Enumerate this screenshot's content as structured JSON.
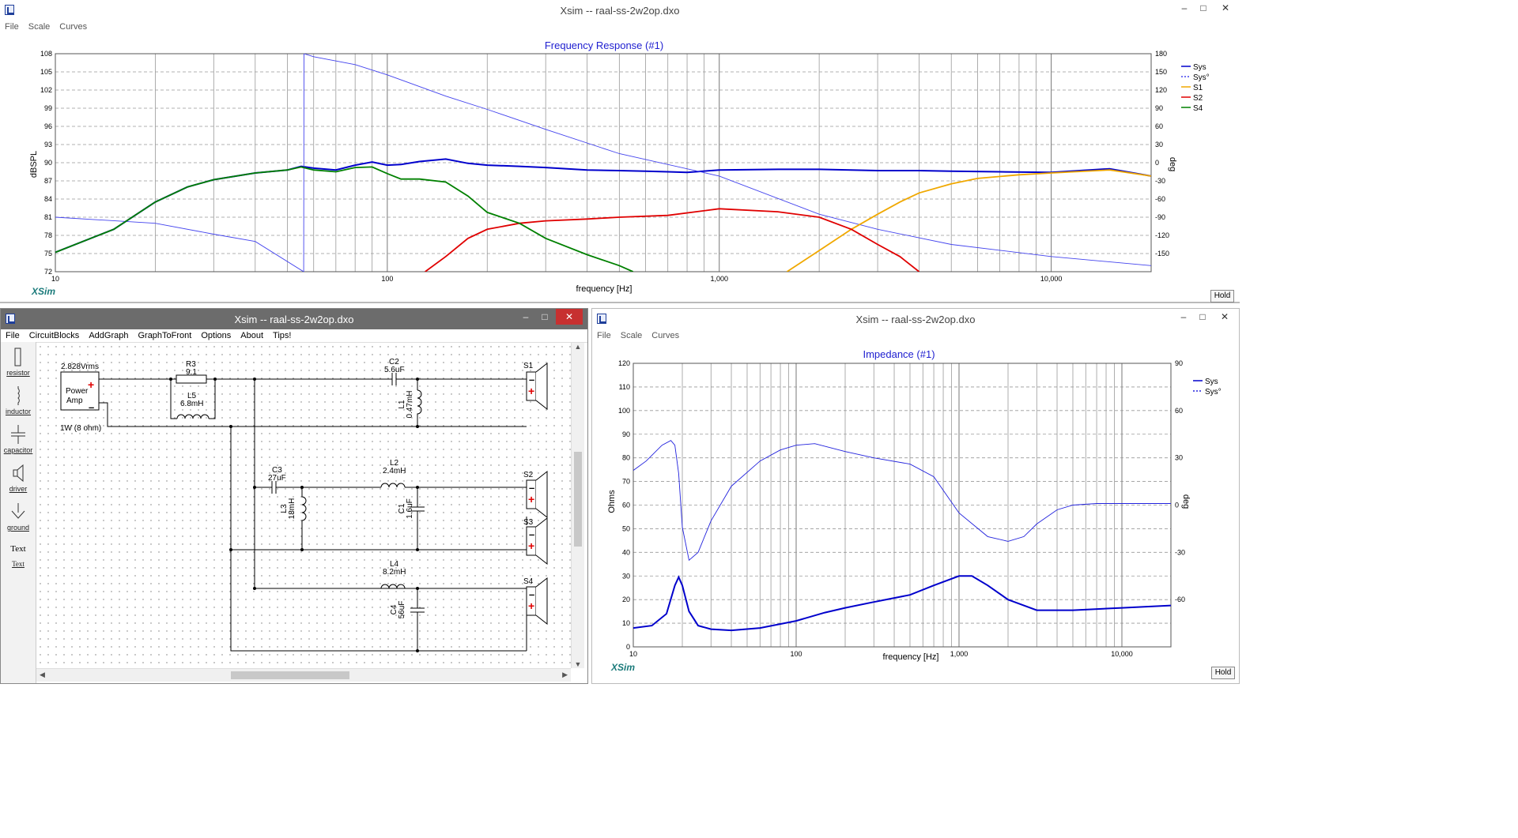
{
  "freq_window": {
    "title": "Xsim -- raal-ss-2w2op.dxo",
    "menu": [
      "File",
      "Scale",
      "Curves"
    ],
    "hold_label": "Hold",
    "logo": "XSim",
    "chart_data": {
      "type": "line",
      "title": "Frequency Response (#1)",
      "xlabel": "frequency [Hz]",
      "ylabel": "dBSPL",
      "y2label": "deg",
      "x_scale": "log",
      "xlim": [
        10,
        20000
      ],
      "ylim": [
        72,
        108
      ],
      "y2lim": [
        -180,
        180
      ],
      "x_ticks": [
        "10",
        "100",
        "1,000",
        "10,000"
      ],
      "y_ticks": [
        "72",
        "75",
        "78",
        "81",
        "84",
        "87",
        "90",
        "93",
        "96",
        "99",
        "102",
        "105",
        "108"
      ],
      "y2_ticks": [
        "-150",
        "-120",
        "-90",
        "-60",
        "-30",
        "0",
        "30",
        "60",
        "90",
        "120",
        "150",
        "180"
      ],
      "grid": true,
      "legend_position": "top-right",
      "series": [
        {
          "name": "Sys",
          "color": "#0000cc",
          "style": "solid",
          "axis": "left",
          "x": [
            10,
            15,
            20,
            25,
            30,
            40,
            50,
            55,
            60,
            70,
            80,
            90,
            100,
            110,
            125,
            150,
            175,
            200,
            250,
            300,
            400,
            500,
            600,
            700,
            800,
            1000,
            1500,
            2000,
            3000,
            4000,
            5000,
            7000,
            10000,
            15000,
            20000
          ],
          "y": [
            75.2,
            79,
            83.5,
            86,
            87.2,
            88.3,
            88.8,
            89.4,
            89.1,
            88.8,
            89.6,
            90.1,
            89.6,
            89.7,
            90.2,
            90.6,
            89.9,
            89.6,
            89.4,
            89.2,
            88.8,
            88.7,
            88.6,
            88.5,
            88.4,
            88.8,
            88.9,
            88.9,
            88.7,
            88.7,
            88.6,
            88.5,
            88.4,
            89.0,
            87.8
          ]
        },
        {
          "name": "Sys°",
          "color": "#4444ee",
          "style": "dashed",
          "axis": "right",
          "x": [
            10,
            20,
            30,
            40,
            56,
            56.1,
            60,
            80,
            100,
            150,
            200,
            300,
            500,
            1000,
            2000,
            3000,
            5000,
            10000,
            20000
          ],
          "y": [
            -90,
            -100,
            -118,
            -130,
            -180,
            180,
            175,
            162,
            145,
            110,
            88,
            55,
            15,
            -22,
            -85,
            -110,
            -135,
            -155,
            -170
          ]
        },
        {
          "name": "S1",
          "color": "#f0a800",
          "style": "solid",
          "axis": "left",
          "x": [
            1600,
            2000,
            2500,
            3000,
            3500,
            4000,
            5000,
            6000,
            8000,
            10000,
            15000,
            20000
          ],
          "y": [
            72,
            75.5,
            79,
            81.5,
            83.5,
            85,
            86.5,
            87.4,
            88,
            88.3,
            88.8,
            87.8
          ]
        },
        {
          "name": "S2",
          "color": "#e00000",
          "style": "solid",
          "axis": "left",
          "x": [
            130,
            150,
            175,
            200,
            250,
            300,
            400,
            500,
            700,
            1000,
            1500,
            2000,
            2500,
            3000,
            3500,
            4000
          ],
          "y": [
            72,
            74.5,
            77.5,
            79,
            80,
            80.4,
            80.7,
            81,
            81.3,
            82.4,
            81.9,
            81,
            79,
            76.5,
            74.5,
            72
          ]
        },
        {
          "name": "S4",
          "color": "#008000",
          "style": "solid",
          "axis": "left",
          "x": [
            10,
            15,
            20,
            25,
            30,
            40,
            50,
            55,
            60,
            70,
            80,
            90,
            100,
            110,
            125,
            150,
            175,
            200,
            250,
            300,
            400,
            500,
            550
          ],
          "y": [
            75.2,
            79,
            83.5,
            86,
            87.2,
            88.3,
            88.8,
            89.3,
            88.8,
            88.5,
            89.2,
            89.3,
            88.2,
            87.3,
            87.3,
            86.8,
            84.5,
            81.8,
            80,
            77.5,
            74.8,
            73,
            72
          ]
        }
      ]
    }
  },
  "imp_window": {
    "title": "Xsim -- raal-ss-2w2op.dxo",
    "menu": [
      "File",
      "Scale",
      "Curves"
    ],
    "hold_label": "Hold",
    "logo": "XSim",
    "chart_data": {
      "type": "line",
      "title": "Impedance (#1)",
      "xlabel": "frequency [Hz]",
      "ylabel": "Ohms",
      "y2label": "deg",
      "x_scale": "log",
      "xlim": [
        10,
        20000
      ],
      "ylim": [
        0,
        120
      ],
      "y2lim": [
        -90,
        90
      ],
      "x_ticks": [
        "10",
        "100",
        "1,000",
        "10,000"
      ],
      "y_ticks": [
        "0",
        "10",
        "20",
        "30",
        "40",
        "50",
        "60",
        "70",
        "80",
        "90",
        "100",
        "110",
        "120"
      ],
      "y2_ticks": [
        "-60",
        "-30",
        "0",
        "30",
        "60",
        "90"
      ],
      "grid": true,
      "legend_position": "top-right",
      "series": [
        {
          "name": "Sys",
          "color": "#0000cc",
          "style": "solid",
          "axis": "left",
          "x": [
            10,
            13,
            16,
            18,
            19,
            20,
            22,
            25,
            30,
            40,
            60,
            100,
            150,
            200,
            300,
            500,
            700,
            1000,
            1200,
            1500,
            2000,
            3000,
            5000,
            10000,
            20000
          ],
          "y": [
            8,
            9,
            14,
            26,
            29.5,
            26,
            15,
            9,
            7.5,
            7,
            8,
            11,
            14.5,
            16.5,
            19,
            22,
            26,
            30,
            30,
            26,
            20,
            15.5,
            15.5,
            16.5,
            17.5
          ]
        },
        {
          "name": "Sys°",
          "color": "#2222dd",
          "style": "dashed",
          "axis": "right",
          "x": [
            10,
            12,
            15,
            17,
            18,
            19,
            20,
            22,
            25,
            30,
            40,
            60,
            80,
            100,
            130,
            200,
            300,
            500,
            700,
            1000,
            1500,
            2000,
            2500,
            3000,
            4000,
            5000,
            7000,
            10000,
            20000
          ],
          "y": [
            22,
            28,
            38,
            41,
            38,
            20,
            -14,
            -35,
            -30,
            -10,
            12,
            28,
            35,
            38,
            39,
            34,
            30,
            26,
            18,
            -5,
            -20,
            -23,
            -20,
            -12,
            -3,
            0,
            1,
            1,
            1
          ]
        }
      ]
    }
  },
  "circuit_window": {
    "title": "Xsim -- raal-ss-2w2op.dxo",
    "menu": [
      "File",
      "CircuitBlocks",
      "AddGraph",
      "GraphToFront",
      "Options",
      "About",
      "Tips!"
    ],
    "tools": [
      {
        "name": "resistor",
        "label": "resistor"
      },
      {
        "name": "inductor",
        "label": "inductor"
      },
      {
        "name": "capacitor",
        "label": "capacitor"
      },
      {
        "name": "driver",
        "label": "driver"
      },
      {
        "name": "ground",
        "label": "ground"
      },
      {
        "name": "text",
        "label": "Text",
        "sub": "Text"
      }
    ],
    "amp": {
      "voltage": "2.828Vrms",
      "line1": "Power",
      "line2": "Amp",
      "power": "1W (8 ohm)"
    },
    "components": {
      "R3": {
        "name": "R3",
        "value": "9.1"
      },
      "L5": {
        "name": "L5",
        "value": "6.8mH"
      },
      "C2": {
        "name": "C2",
        "value": "5.6uF"
      },
      "L1": {
        "name": "L1",
        "value": "0.47mH"
      },
      "C3": {
        "name": "C3",
        "value": "27uF"
      },
      "L2": {
        "name": "L2",
        "value": "2.4mH"
      },
      "L3": {
        "name": "L3",
        "value": "18mH"
      },
      "C1": {
        "name": "C1",
        "value": "1.6uF"
      },
      "L4": {
        "name": "L4",
        "value": "8.2mH"
      },
      "C4": {
        "name": "C4",
        "value": "56uF"
      }
    },
    "speakers": [
      "S1",
      "S2",
      "S3",
      "S4"
    ]
  }
}
